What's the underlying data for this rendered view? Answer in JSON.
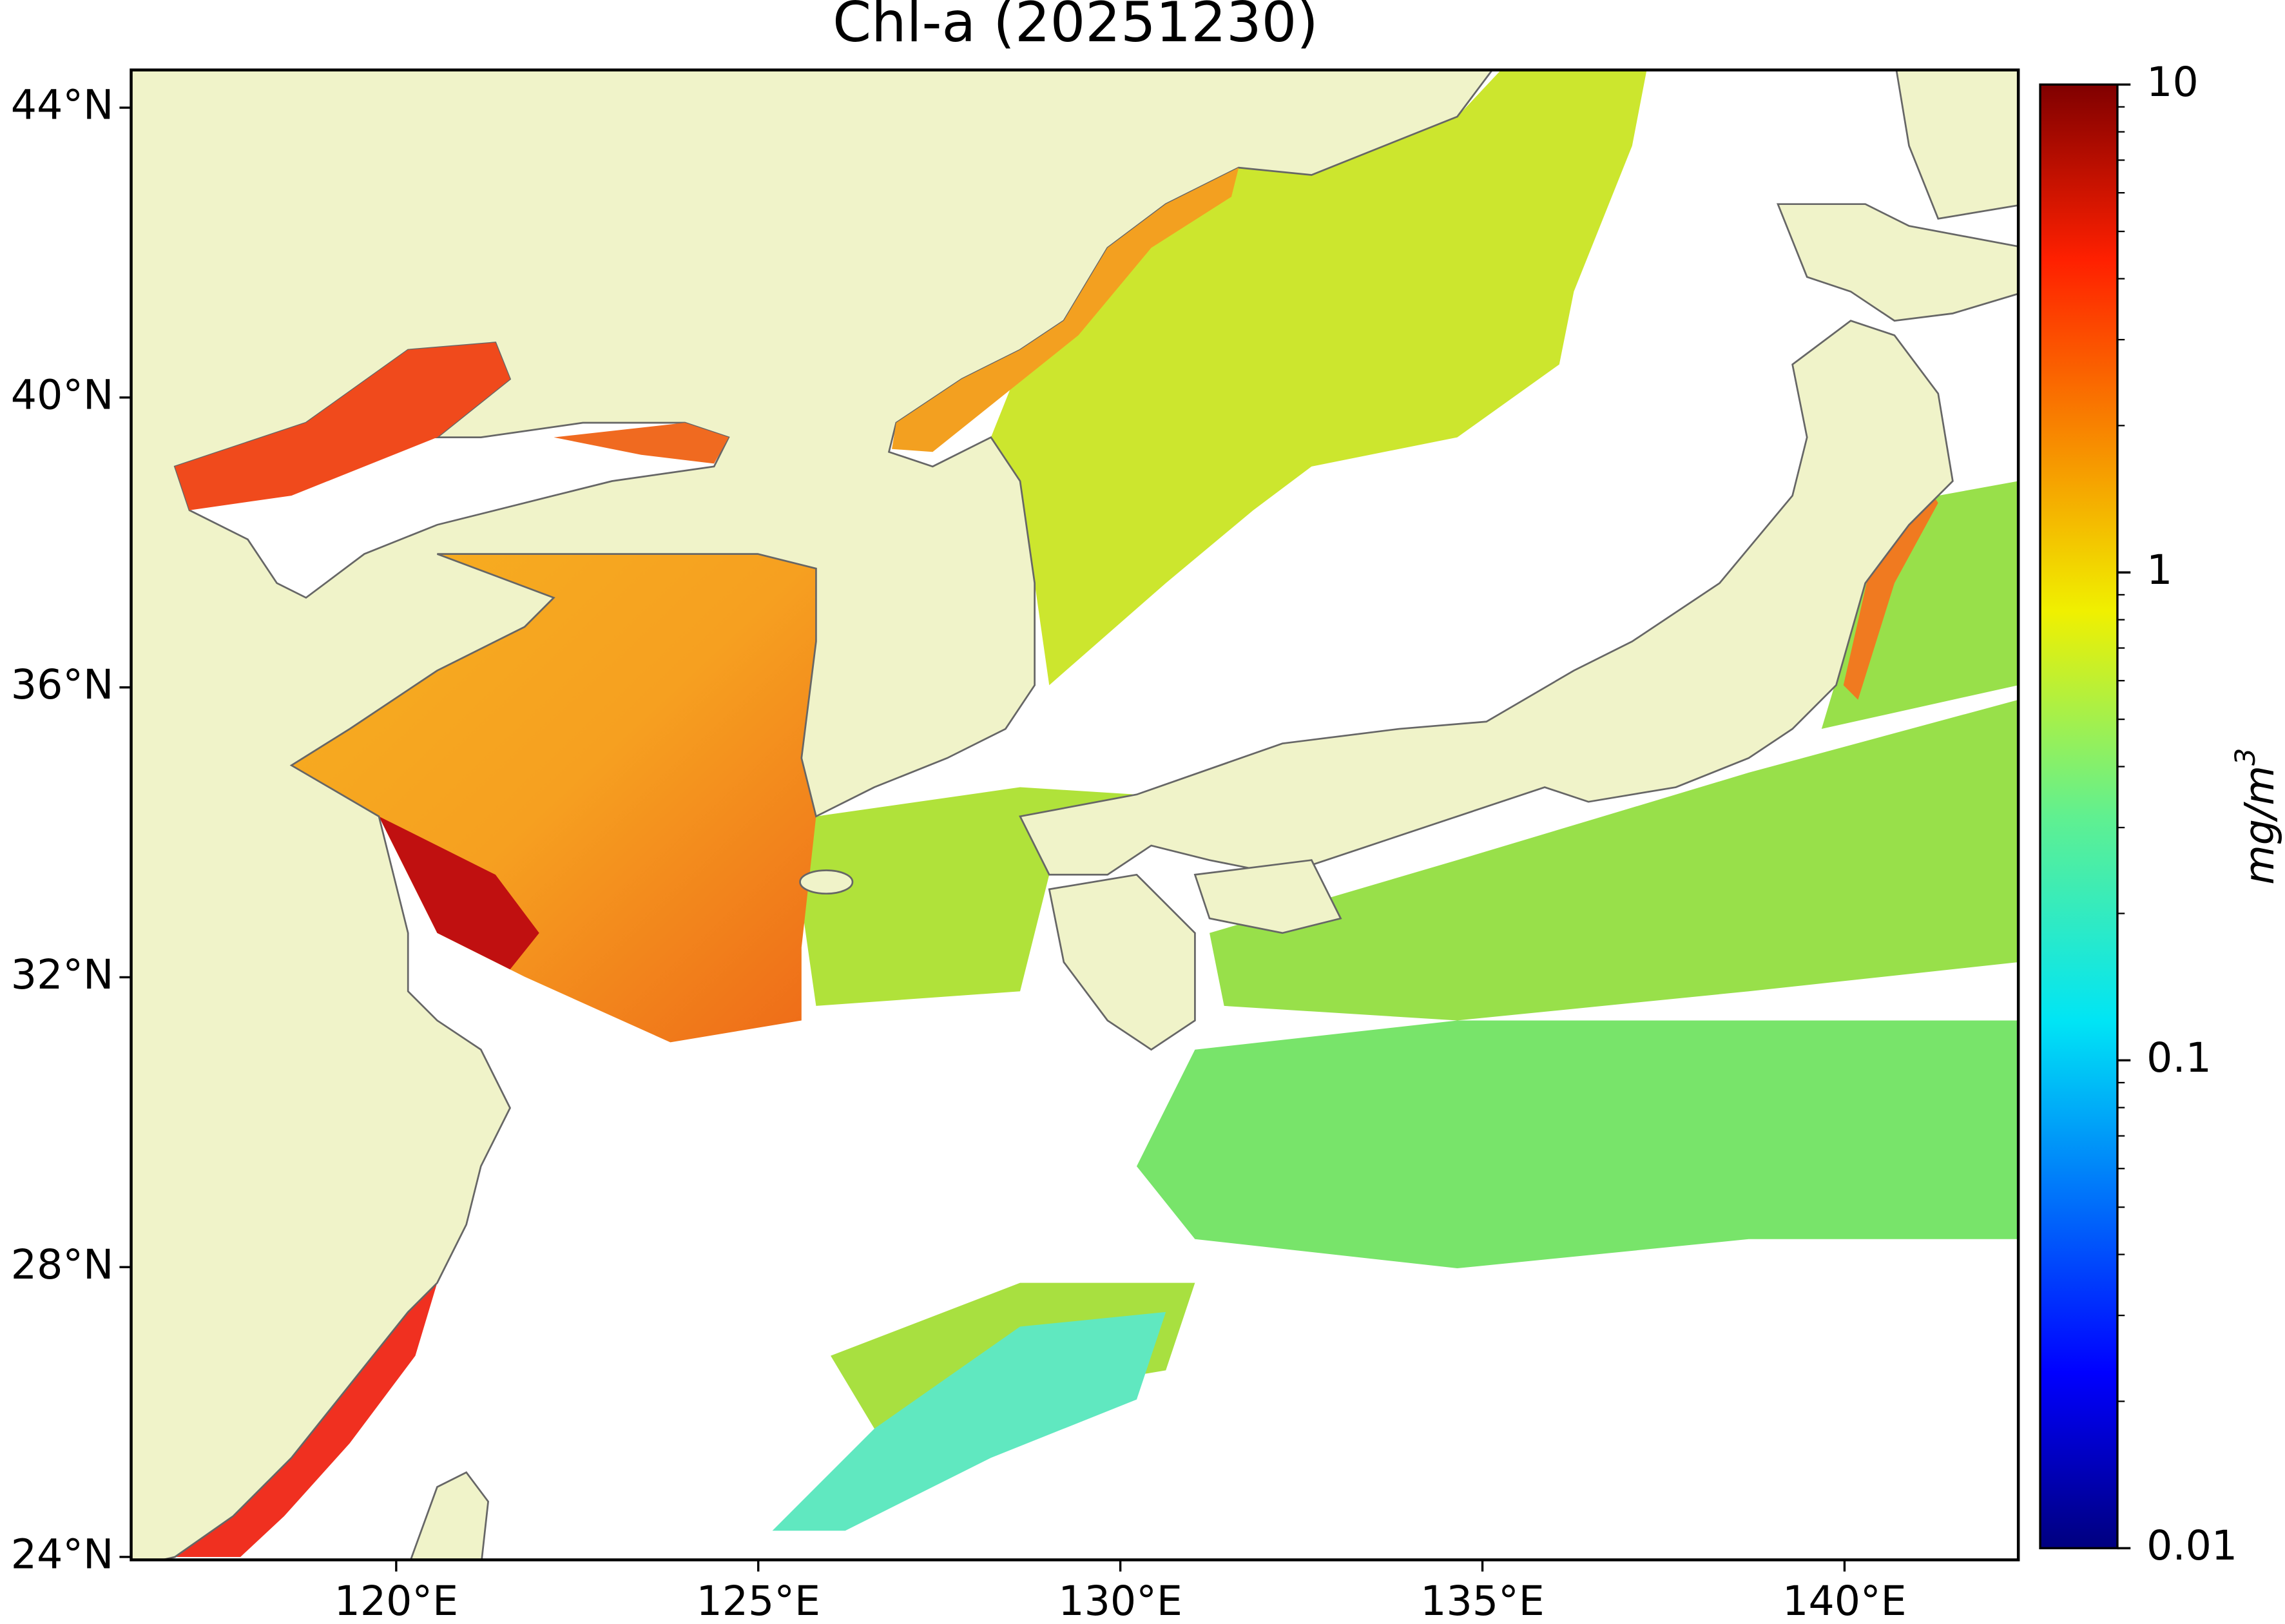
{
  "chart_data": {
    "type": "map",
    "title": "Chl-a (20251230)",
    "xlim": [
      116.34,
      142.4
    ],
    "ylim": [
      23.96,
      44.52
    ],
    "xticks": [
      {
        "value": 120,
        "label": "120°E"
      },
      {
        "value": 125,
        "label": "125°E"
      },
      {
        "value": 130,
        "label": "130°E"
      },
      {
        "value": 135,
        "label": "135°E"
      },
      {
        "value": 140,
        "label": "140°E"
      }
    ],
    "yticks": [
      {
        "value": 24,
        "label": "24°N"
      },
      {
        "value": 28,
        "label": "28°N"
      },
      {
        "value": 32,
        "label": "32°N"
      },
      {
        "value": 36,
        "label": "36°N"
      },
      {
        "value": 40,
        "label": "40°N"
      },
      {
        "value": 44,
        "label": "44°N"
      }
    ],
    "colorbar": {
      "label": "mg/m",
      "label_superscript": "3",
      "log_scale": true,
      "lim": [
        0.01,
        10
      ],
      "ticks": [
        0.01,
        0.1,
        1,
        10
      ],
      "minor_ticks": [
        0.02,
        0.03,
        0.04,
        0.05,
        0.06,
        0.07,
        0.08,
        0.09,
        0.2,
        0.3,
        0.4,
        0.5,
        0.6,
        0.7,
        0.8,
        0.9,
        2,
        3,
        4,
        5,
        6,
        7,
        8,
        9
      ]
    }
  }
}
